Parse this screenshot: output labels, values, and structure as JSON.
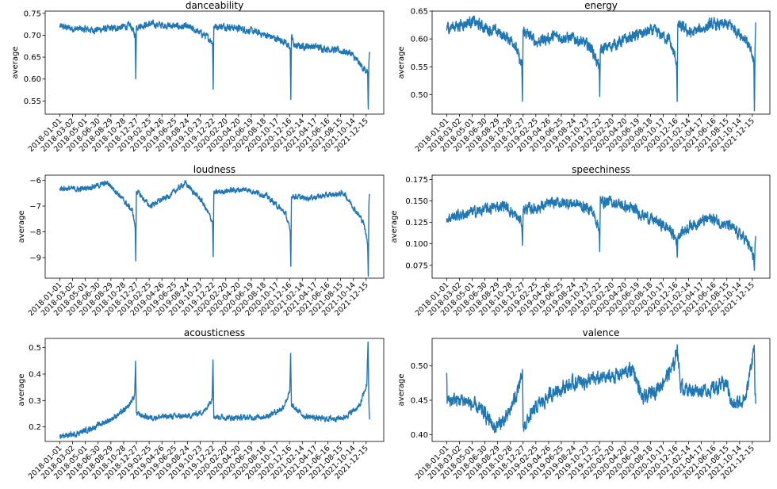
{
  "figure": {
    "line_color": "#1f77b4",
    "x_tick_labels": [
      "2018-01-01",
      "2018-03-02",
      "2018-05-01",
      "2018-06-30",
      "2018-08-29",
      "2018-10-28",
      "2018-12-27",
      "2019-02-25",
      "2019-04-26",
      "2019-06-25",
      "2019-08-24",
      "2019-10-23",
      "2019-12-22",
      "2020-02-20",
      "2020-04-20",
      "2020-06-19",
      "2020-08-18",
      "2020-10-17",
      "2020-12-16",
      "2021-02-14",
      "2021-04-17",
      "2021-06-16",
      "2021-08-15",
      "2021-10-14",
      "2021-12-15"
    ],
    "x_tick_labels_alt": [
      "2018-01-01",
      "2018-03-02",
      "2018-05-01",
      "2018-06-30",
      "2018-08-29",
      "2018-10-28",
      "2018-12-27",
      "2019-02-25",
      "2019-04-26",
      "2019-06-25",
      "2019-08-24",
      "2019-10-23",
      "2019-12-22",
      "2020-02-20",
      "2020-04-20",
      "2020-06-19",
      "2020-08-18",
      "2020-10-17",
      "2020-12-16",
      "2021-02-14",
      "2021-04-17",
      "2021-06-16",
      "2021-08-15",
      "2021-10-14",
      "2021-12-15"
    ]
  },
  "chart_data": [
    {
      "type": "line",
      "title": "danceability",
      "ylabel": "average",
      "xlabel": "",
      "x_start": "2018-01-01",
      "x_end": "2021-12-31",
      "ylim": [
        0.52,
        0.755
      ],
      "yticks": [
        0.55,
        0.6,
        0.65,
        0.7,
        0.75
      ],
      "ytick_labels": [
        "0.55",
        "0.60",
        "0.65",
        "0.70",
        "0.75"
      ],
      "anchors": [
        [
          "2018-01-01",
          0.72
        ],
        [
          "2018-03-01",
          0.715
        ],
        [
          "2018-06-01",
          0.712
        ],
        [
          "2018-09-01",
          0.715
        ],
        [
          "2018-12-01",
          0.722
        ],
        [
          "2018-12-22",
          0.7
        ],
        [
          "2018-12-25",
          0.605
        ],
        [
          "2018-12-28",
          0.72
        ],
        [
          "2019-03-01",
          0.725
        ],
        [
          "2019-06-01",
          0.722
        ],
        [
          "2019-09-01",
          0.718
        ],
        [
          "2019-11-15",
          0.7
        ],
        [
          "2019-12-22",
          0.685
        ],
        [
          "2019-12-25",
          0.58
        ],
        [
          "2019-12-28",
          0.72
        ],
        [
          "2020-03-01",
          0.72
        ],
        [
          "2020-06-01",
          0.712
        ],
        [
          "2020-09-01",
          0.7
        ],
        [
          "2020-12-01",
          0.685
        ],
        [
          "2020-12-22",
          0.665
        ],
        [
          "2020-12-25",
          0.56
        ],
        [
          "2020-12-28",
          0.7
        ],
        [
          "2021-01-10",
          0.675
        ],
        [
          "2021-04-01",
          0.675
        ],
        [
          "2021-07-01",
          0.668
        ],
        [
          "2021-10-01",
          0.66
        ],
        [
          "2021-12-10",
          0.62
        ],
        [
          "2021-12-22",
          0.61
        ],
        [
          "2021-12-25",
          0.53
        ],
        [
          "2021-12-28",
          0.64
        ],
        [
          "2021-12-31",
          0.66
        ]
      ],
      "noise": 0.006
    },
    {
      "type": "line",
      "title": "energy",
      "ylabel": "average",
      "xlabel": "",
      "x_start": "2018-01-01",
      "x_end": "2021-12-31",
      "ylim": [
        0.465,
        0.65
      ],
      "yticks": [
        0.5,
        0.55,
        0.6,
        0.65
      ],
      "ytick_labels": [
        "0.50",
        "0.55",
        "0.60",
        "0.65"
      ],
      "anchors": [
        [
          "2018-01-01",
          0.62
        ],
        [
          "2018-03-01",
          0.625
        ],
        [
          "2018-05-01",
          0.632
        ],
        [
          "2018-07-01",
          0.62
        ],
        [
          "2018-09-01",
          0.612
        ],
        [
          "2018-11-15",
          0.595
        ],
        [
          "2018-12-22",
          0.55
        ],
        [
          "2018-12-25",
          0.48
        ],
        [
          "2018-12-28",
          0.615
        ],
        [
          "2019-03-01",
          0.595
        ],
        [
          "2019-06-01",
          0.605
        ],
        [
          "2019-09-01",
          0.6
        ],
        [
          "2019-11-15",
          0.585
        ],
        [
          "2019-12-22",
          0.55
        ],
        [
          "2019-12-25",
          0.49
        ],
        [
          "2019-12-28",
          0.58
        ],
        [
          "2020-03-01",
          0.59
        ],
        [
          "2020-06-01",
          0.605
        ],
        [
          "2020-09-01",
          0.615
        ],
        [
          "2020-11-15",
          0.6
        ],
        [
          "2020-12-22",
          0.56
        ],
        [
          "2020-12-25",
          0.487
        ],
        [
          "2020-12-28",
          0.625
        ],
        [
          "2021-03-01",
          0.61
        ],
        [
          "2021-06-01",
          0.625
        ],
        [
          "2021-09-01",
          0.625
        ],
        [
          "2021-11-15",
          0.6
        ],
        [
          "2021-12-22",
          0.56
        ],
        [
          "2021-12-25",
          0.47
        ],
        [
          "2021-12-28",
          0.58
        ],
        [
          "2021-12-31",
          0.625
        ]
      ],
      "noise": 0.008
    },
    {
      "type": "line",
      "title": "loudness",
      "ylabel": "average",
      "xlabel": "",
      "x_start": "2018-01-01",
      "x_end": "2021-12-31",
      "ylim": [
        -9.8,
        -5.8
      ],
      "yticks": [
        -9,
        -8,
        -7,
        -6
      ],
      "ytick_labels": [
        "−9",
        "−8",
        "−7",
        "−6"
      ],
      "anchors": [
        [
          "2018-01-01",
          -6.3
        ],
        [
          "2018-04-01",
          -6.35
        ],
        [
          "2018-07-01",
          -6.2
        ],
        [
          "2018-08-15",
          -6.1
        ],
        [
          "2018-10-01",
          -6.5
        ],
        [
          "2018-12-10",
          -7.2
        ],
        [
          "2018-12-22",
          -7.8
        ],
        [
          "2018-12-25",
          -9.1
        ],
        [
          "2018-12-28",
          -6.4
        ],
        [
          "2019-03-01",
          -7.0
        ],
        [
          "2019-06-01",
          -6.6
        ],
        [
          "2019-08-15",
          -6.1
        ],
        [
          "2019-11-01",
          -6.8
        ],
        [
          "2019-12-22",
          -7.6
        ],
        [
          "2019-12-25",
          -9.0
        ],
        [
          "2019-12-28",
          -6.5
        ],
        [
          "2020-03-01",
          -6.4
        ],
        [
          "2020-06-01",
          -6.35
        ],
        [
          "2020-09-01",
          -6.6
        ],
        [
          "2020-12-01",
          -7.3
        ],
        [
          "2020-12-22",
          -8.0
        ],
        [
          "2020-12-25",
          -9.3
        ],
        [
          "2020-12-28",
          -6.6
        ],
        [
          "2021-03-01",
          -6.7
        ],
        [
          "2021-06-01",
          -6.6
        ],
        [
          "2021-09-01",
          -6.5
        ],
        [
          "2021-12-01",
          -7.6
        ],
        [
          "2021-12-22",
          -8.4
        ],
        [
          "2021-12-25",
          -9.7
        ],
        [
          "2021-12-28",
          -7.0
        ],
        [
          "2021-12-31",
          -6.5
        ]
      ],
      "noise": 0.08
    },
    {
      "type": "line",
      "title": "speechiness",
      "ylabel": "average",
      "xlabel": "",
      "x_start": "2018-01-01",
      "x_end": "2021-12-31",
      "ylim": [
        0.06,
        0.18
      ],
      "yticks": [
        0.075,
        0.1,
        0.125,
        0.15,
        0.175
      ],
      "ytick_labels": [
        "0.075",
        "0.100",
        "0.125",
        "0.150",
        "0.175"
      ],
      "anchors": [
        [
          "2018-01-01",
          0.13
        ],
        [
          "2018-04-01",
          0.135
        ],
        [
          "2018-07-01",
          0.14
        ],
        [
          "2018-10-01",
          0.145
        ],
        [
          "2018-12-22",
          0.125
        ],
        [
          "2018-12-25",
          0.095
        ],
        [
          "2018-12-28",
          0.14
        ],
        [
          "2019-03-01",
          0.142
        ],
        [
          "2019-06-01",
          0.148
        ],
        [
          "2019-09-01",
          0.147
        ],
        [
          "2019-11-15",
          0.14
        ],
        [
          "2019-12-22",
          0.12
        ],
        [
          "2019-12-25",
          0.088
        ],
        [
          "2019-12-28",
          0.15
        ],
        [
          "2020-03-01",
          0.148
        ],
        [
          "2020-06-01",
          0.14
        ],
        [
          "2020-09-01",
          0.128
        ],
        [
          "2020-11-15",
          0.118
        ],
        [
          "2020-12-22",
          0.105
        ],
        [
          "2020-12-25",
          0.082
        ],
        [
          "2020-12-28",
          0.11
        ],
        [
          "2021-03-01",
          0.122
        ],
        [
          "2021-06-01",
          0.13
        ],
        [
          "2021-09-01",
          0.12
        ],
        [
          "2021-11-15",
          0.105
        ],
        [
          "2021-12-22",
          0.085
        ],
        [
          "2021-12-25",
          0.062
        ],
        [
          "2021-12-28",
          0.09
        ],
        [
          "2021-12-31",
          0.108
        ]
      ],
      "noise": 0.005
    },
    {
      "type": "line",
      "title": "acousticness",
      "ylabel": "average",
      "xlabel": "",
      "x_start": "2018-01-01",
      "x_end": "2021-12-31",
      "ylim": [
        0.145,
        0.535
      ],
      "yticks": [
        0.2,
        0.3,
        0.4,
        0.5
      ],
      "ytick_labels": [
        "0.2",
        "0.3",
        "0.4",
        "0.5"
      ],
      "anchors": [
        [
          "2018-01-01",
          0.165
        ],
        [
          "2018-03-01",
          0.17
        ],
        [
          "2018-06-01",
          0.195
        ],
        [
          "2018-09-01",
          0.23
        ],
        [
          "2018-11-15",
          0.27
        ],
        [
          "2018-12-20",
          0.32
        ],
        [
          "2018-12-24",
          0.45
        ],
        [
          "2018-12-28",
          0.25
        ],
        [
          "2019-03-01",
          0.235
        ],
        [
          "2019-06-01",
          0.24
        ],
        [
          "2019-09-01",
          0.24
        ],
        [
          "2019-11-15",
          0.26
        ],
        [
          "2019-12-20",
          0.31
        ],
        [
          "2019-12-24",
          0.46
        ],
        [
          "2019-12-28",
          0.24
        ],
        [
          "2020-03-01",
          0.235
        ],
        [
          "2020-06-01",
          0.235
        ],
        [
          "2020-09-01",
          0.24
        ],
        [
          "2020-11-15",
          0.27
        ],
        [
          "2020-12-20",
          0.33
        ],
        [
          "2020-12-24",
          0.47
        ],
        [
          "2020-12-28",
          0.28
        ],
        [
          "2021-03-01",
          0.24
        ],
        [
          "2021-06-01",
          0.23
        ],
        [
          "2021-09-01",
          0.235
        ],
        [
          "2021-11-15",
          0.28
        ],
        [
          "2021-12-18",
          0.36
        ],
        [
          "2021-12-24",
          0.52
        ],
        [
          "2021-12-28",
          0.3
        ],
        [
          "2021-12-31",
          0.22
        ]
      ],
      "noise": 0.008
    },
    {
      "type": "line",
      "title": "valence",
      "ylabel": "average",
      "xlabel": "",
      "x_start": "2018-01-01",
      "x_end": "2021-12-31",
      "ylim": [
        0.39,
        0.54
      ],
      "yticks": [
        0.4,
        0.45,
        0.5
      ],
      "ytick_labels": [
        "0.40",
        "0.45",
        "0.50"
      ],
      "anchors": [
        [
          "2018-01-01",
          0.495
        ],
        [
          "2018-01-03",
          0.45
        ],
        [
          "2018-04-01",
          0.45
        ],
        [
          "2018-07-01",
          0.43
        ],
        [
          "2018-08-15",
          0.41
        ],
        [
          "2018-10-15",
          0.425
        ],
        [
          "2018-12-22",
          0.48
        ],
        [
          "2018-12-25",
          0.495
        ],
        [
          "2018-12-28",
          0.41
        ],
        [
          "2019-03-01",
          0.44
        ],
        [
          "2019-06-01",
          0.465
        ],
        [
          "2019-09-01",
          0.475
        ],
        [
          "2019-12-01",
          0.48
        ],
        [
          "2020-03-01",
          0.485
        ],
        [
          "2020-06-01",
          0.495
        ],
        [
          "2020-07-15",
          0.45
        ],
        [
          "2020-10-01",
          0.47
        ],
        [
          "2020-12-10",
          0.5
        ],
        [
          "2020-12-25",
          0.53
        ],
        [
          "2021-01-10",
          0.47
        ],
        [
          "2021-03-01",
          0.465
        ],
        [
          "2021-06-01",
          0.465
        ],
        [
          "2021-08-15",
          0.475
        ],
        [
          "2021-09-15",
          0.44
        ],
        [
          "2021-11-15",
          0.455
        ],
        [
          "2021-12-24",
          0.53
        ],
        [
          "2021-12-28",
          0.45
        ],
        [
          "2021-12-31",
          0.445
        ]
      ],
      "noise": 0.008
    }
  ]
}
